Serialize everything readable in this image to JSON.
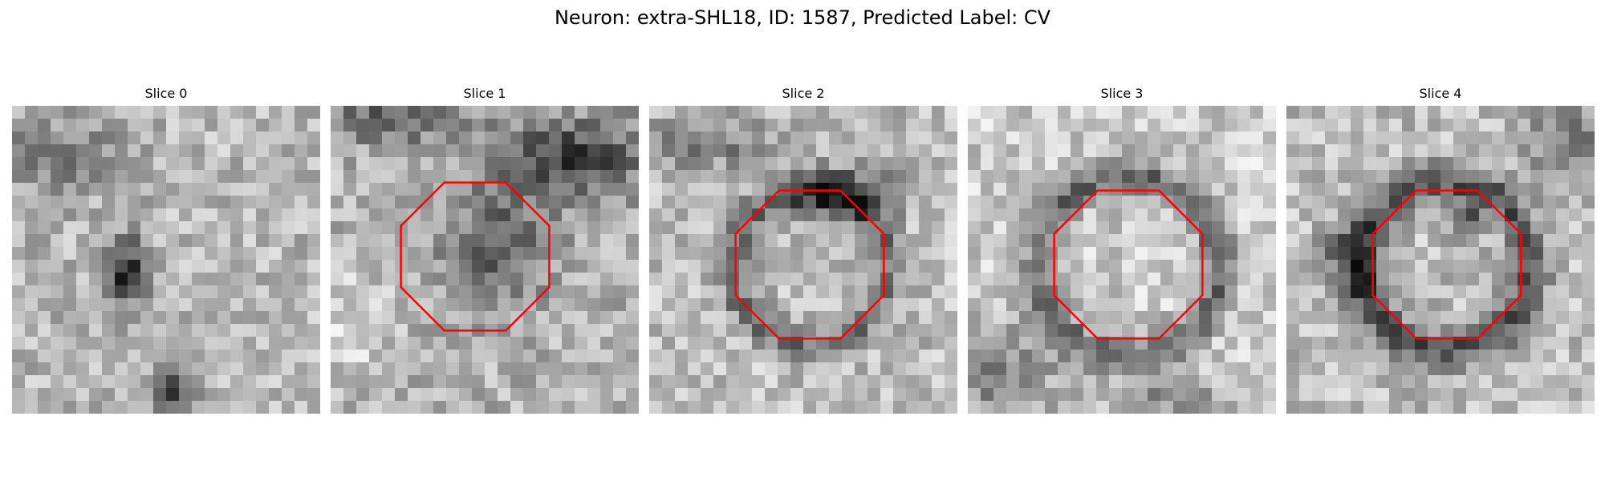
{
  "figure": {
    "title": "Neuron: extra-SHL18, ID: 1587, Predicted Label: CV"
  },
  "slices": [
    {
      "title": "Slice 0",
      "roi": false
    },
    {
      "title": "Slice 1",
      "roi": true
    },
    {
      "title": "Slice 2",
      "roi": true
    },
    {
      "title": "Slice 3",
      "roi": true
    },
    {
      "title": "Slice 4",
      "roi": true
    }
  ],
  "colors": {
    "roi": "#ff0000",
    "background": "#ffffff"
  }
}
